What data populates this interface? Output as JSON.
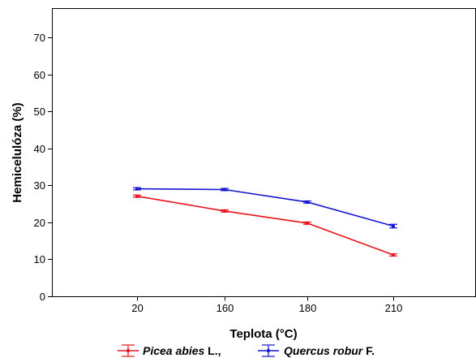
{
  "chart_data": {
    "type": "line",
    "categories": [
      "20",
      "160",
      "180",
      "210"
    ],
    "series": [
      {
        "name": "Picea abies L.",
        "name_parts": [
          "Picea abies",
          " L.,"
        ],
        "color": "#e8141c",
        "values": [
          27.1,
          23.1,
          19.8,
          11.2
        ],
        "error": [
          0.3,
          0.3,
          0.3,
          0.3
        ]
      },
      {
        "name": "Quercus robur F.",
        "name_parts": [
          "Quercus robur",
          " F."
        ],
        "color": "#1414d2",
        "values": [
          29.1,
          28.9,
          25.5,
          19.0
        ],
        "error": [
          0.3,
          0.3,
          0.3,
          0.5
        ]
      }
    ],
    "xlabel": "Teplota (°C)",
    "ylabel": "Hemicelulóza (%)",
    "ylim": [
      0,
      78
    ],
    "yticks": [
      0,
      10,
      20,
      30,
      40,
      50,
      60,
      70
    ],
    "grid": false,
    "legend": "bottom-center"
  }
}
